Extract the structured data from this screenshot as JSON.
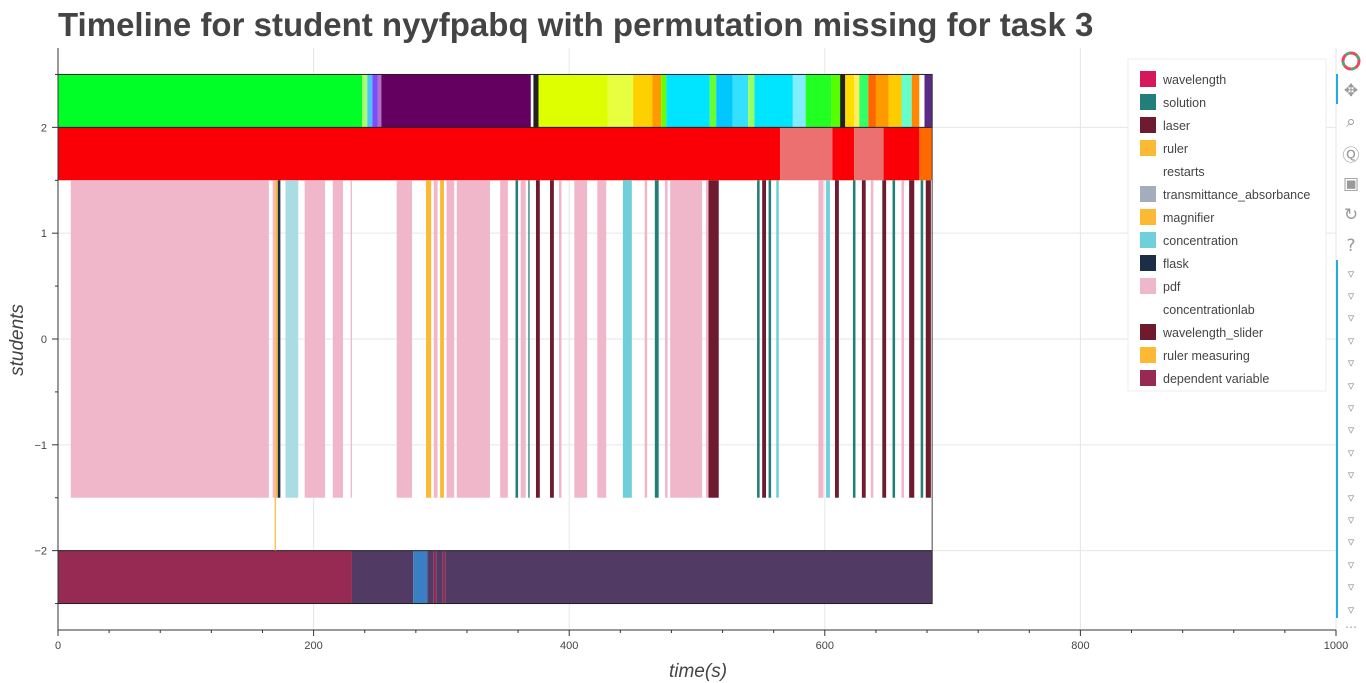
{
  "chart_data": {
    "type": "timeline",
    "title": "Timeline for student nyyfpabq with permutation missing for task 3",
    "xlabel": "time(s)",
    "ylabel": "students",
    "xlim": [
      0,
      1000
    ],
    "ylim": [
      -2.75,
      2.75
    ],
    "x_ticks": [
      0,
      200,
      400,
      600,
      800,
      1000
    ],
    "y_ticks": [
      -2,
      -1,
      0,
      1,
      2
    ],
    "y_tick_labels": [
      "−2",
      "−1",
      "0",
      "1",
      "2"
    ],
    "grid": true,
    "legend_position": "top-right",
    "end_time": 684,
    "legend": [
      {
        "label": "wavelength",
        "color": "#d6185a"
      },
      {
        "label": "solution",
        "color": "#237d79"
      },
      {
        "label": "laser",
        "color": "#6e1a2f"
      },
      {
        "label": "ruler",
        "color": "#fbb934"
      },
      {
        "label": "restarts",
        "color": "#ffffff"
      },
      {
        "label": "transmittance_absorbance",
        "color": "#a3adbc"
      },
      {
        "label": "magnifier",
        "color": "#fbb934"
      },
      {
        "label": "concentration",
        "color": "#6fd0dc"
      },
      {
        "label": "flask",
        "color": "#1b2e45"
      },
      {
        "label": "pdf",
        "color": "#f0b7ca"
      },
      {
        "label": "concentrationlab",
        "color": "#ffffff"
      },
      {
        "label": "wavelength_slider",
        "color": "#6e1a2f"
      },
      {
        "label": "ruler measuring",
        "color": "#fbb934"
      },
      {
        "label": "dependent variable",
        "color": "#962a52"
      }
    ],
    "rows": [
      {
        "y": [
          2,
          2.5
        ],
        "segments": [
          {
            "start": 0,
            "end": 238,
            "color": "#00ff26"
          },
          {
            "start": 238,
            "end": 242,
            "color": "#a8ff6c"
          },
          {
            "start": 242,
            "end": 246,
            "color": "#4fc3f7"
          },
          {
            "start": 246,
            "end": 250,
            "color": "#7c4dff"
          },
          {
            "start": 250,
            "end": 253,
            "color": "#b26fc9"
          },
          {
            "start": 253,
            "end": 370,
            "color": "#630060"
          },
          {
            "start": 370,
            "end": 372,
            "color": "#ffffff"
          },
          {
            "start": 372,
            "end": 376,
            "color": "#222222"
          },
          {
            "start": 376,
            "end": 430,
            "color": "#ddff00"
          },
          {
            "start": 430,
            "end": 450,
            "color": "#e8ff40"
          },
          {
            "start": 450,
            "end": 465,
            "color": "#ffd000"
          },
          {
            "start": 465,
            "end": 472,
            "color": "#ff9900"
          },
          {
            "start": 472,
            "end": 476,
            "color": "#66ff00"
          },
          {
            "start": 476,
            "end": 510,
            "color": "#00e5ff"
          },
          {
            "start": 510,
            "end": 515,
            "color": "#66ff33"
          },
          {
            "start": 515,
            "end": 528,
            "color": "#00c8ff"
          },
          {
            "start": 528,
            "end": 540,
            "color": "#33e0ff"
          },
          {
            "start": 540,
            "end": 545,
            "color": "#99ff66"
          },
          {
            "start": 545,
            "end": 575,
            "color": "#00e5ff"
          },
          {
            "start": 575,
            "end": 585,
            "color": "#80eeff"
          },
          {
            "start": 585,
            "end": 605,
            "color": "#22ff22"
          },
          {
            "start": 605,
            "end": 612,
            "color": "#55ff00"
          },
          {
            "start": 612,
            "end": 616,
            "color": "#222222"
          },
          {
            "start": 616,
            "end": 623,
            "color": "#ffdd00"
          },
          {
            "start": 623,
            "end": 627,
            "color": "#ffee55"
          },
          {
            "start": 627,
            "end": 634,
            "color": "#33ff66"
          },
          {
            "start": 634,
            "end": 640,
            "color": "#ff6600"
          },
          {
            "start": 640,
            "end": 650,
            "color": "#ff9900"
          },
          {
            "start": 650,
            "end": 660,
            "color": "#ffcc00"
          },
          {
            "start": 660,
            "end": 668,
            "color": "#66ffcc"
          },
          {
            "start": 668,
            "end": 674,
            "color": "#ff8800"
          },
          {
            "start": 674,
            "end": 678,
            "color": "#ffffff"
          },
          {
            "start": 678,
            "end": 684,
            "color": "#5b2a86"
          }
        ]
      },
      {
        "y": [
          1.5,
          2
        ],
        "segments": [
          {
            "start": 0,
            "end": 565,
            "color": "#fa0006"
          },
          {
            "start": 565,
            "end": 606,
            "color": "#ed7070"
          },
          {
            "start": 606,
            "end": 623,
            "color": "#fa0006"
          },
          {
            "start": 623,
            "end": 646,
            "color": "#ed7070"
          },
          {
            "start": 646,
            "end": 674,
            "color": "#fa0006"
          },
          {
            "start": 674,
            "end": 684,
            "color": "#ff6a00"
          }
        ]
      },
      {
        "y": [
          -1.5,
          1.5
        ],
        "segments": [
          {
            "start": 10,
            "end": 165,
            "color": "#f0b7ca"
          },
          {
            "start": 168,
            "end": 170,
            "color": "#f0b7ca"
          },
          {
            "start": 170,
            "end": 172,
            "color": "#fbb934"
          },
          {
            "start": 172,
            "end": 174,
            "color": "#1b2e45"
          },
          {
            "start": 178,
            "end": 188,
            "color": "#a9dce3"
          },
          {
            "start": 193,
            "end": 209,
            "color": "#f0b7ca"
          },
          {
            "start": 215,
            "end": 223,
            "color": "#f0b7ca"
          },
          {
            "start": 229,
            "end": 230,
            "color": "#f0b7ca"
          },
          {
            "start": 265,
            "end": 277,
            "color": "#f0b7ca"
          },
          {
            "start": 288,
            "end": 292,
            "color": "#fbb934"
          },
          {
            "start": 294,
            "end": 297,
            "color": "#f0b7ca"
          },
          {
            "start": 299,
            "end": 302,
            "color": "#fbb934"
          },
          {
            "start": 304,
            "end": 310,
            "color": "#f0b7ca"
          },
          {
            "start": 312,
            "end": 338,
            "color": "#f0b7ca"
          },
          {
            "start": 346,
            "end": 352,
            "color": "#f0b7ca"
          },
          {
            "start": 358,
            "end": 360,
            "color": "#237d79"
          },
          {
            "start": 362,
            "end": 366,
            "color": "#f0b7ca"
          },
          {
            "start": 368,
            "end": 369,
            "color": "#237d79"
          },
          {
            "start": 374,
            "end": 377,
            "color": "#6e1a2f"
          },
          {
            "start": 385,
            "end": 388,
            "color": "#6e1a2f"
          },
          {
            "start": 392,
            "end": 394,
            "color": "#f0b7ca"
          },
          {
            "start": 404,
            "end": 414,
            "color": "#f0b7ca"
          },
          {
            "start": 422,
            "end": 429,
            "color": "#f0b7ca"
          },
          {
            "start": 442,
            "end": 449,
            "color": "#6fd0dc"
          },
          {
            "start": 459,
            "end": 461,
            "color": "#f0b7ca"
          },
          {
            "start": 467,
            "end": 470,
            "color": "#237d79"
          },
          {
            "start": 475,
            "end": 477,
            "color": "#f0b7ca"
          },
          {
            "start": 479,
            "end": 504,
            "color": "#f0b7ca"
          },
          {
            "start": 507,
            "end": 509,
            "color": "#f0b7ca"
          },
          {
            "start": 509,
            "end": 517,
            "color": "#6e1a2f"
          },
          {
            "start": 547,
            "end": 549,
            "color": "#237d79"
          },
          {
            "start": 551,
            "end": 554,
            "color": "#6e1a2f"
          },
          {
            "start": 556,
            "end": 558,
            "color": "#237d79"
          },
          {
            "start": 562,
            "end": 564,
            "color": "#6fd0dc"
          },
          {
            "start": 595,
            "end": 599,
            "color": "#f0b7ca"
          },
          {
            "start": 601,
            "end": 604,
            "color": "#6fd0dc"
          },
          {
            "start": 608,
            "end": 611,
            "color": "#6e1a2f"
          },
          {
            "start": 622,
            "end": 624,
            "color": "#237d79"
          },
          {
            "start": 629,
            "end": 632,
            "color": "#6e1a2f"
          },
          {
            "start": 636,
            "end": 638,
            "color": "#f0b7ca"
          },
          {
            "start": 645,
            "end": 648,
            "color": "#6e1a2f"
          },
          {
            "start": 653,
            "end": 655,
            "color": "#237d79"
          },
          {
            "start": 660,
            "end": 662,
            "color": "#f0b7ca"
          },
          {
            "start": 666,
            "end": 670,
            "color": "#6e1a2f"
          },
          {
            "start": 675,
            "end": 677,
            "color": "#237d79"
          },
          {
            "start": 679,
            "end": 683,
            "color": "#6e1a2f"
          }
        ]
      },
      {
        "y": [
          -2.5,
          -2
        ],
        "segments": [
          {
            "start": 0,
            "end": 230,
            "color": "#962a52"
          },
          {
            "start": 230,
            "end": 278,
            "color": "#513a63"
          },
          {
            "start": 278,
            "end": 289,
            "color": "#3a7fc4"
          },
          {
            "start": 289,
            "end": 294,
            "color": "#513a63"
          },
          {
            "start": 294,
            "end": 296,
            "color": "#962a52"
          },
          {
            "start": 296,
            "end": 301,
            "color": "#513a63"
          },
          {
            "start": 301,
            "end": 303,
            "color": "#962a52"
          },
          {
            "start": 303,
            "end": 684,
            "color": "#513a63"
          }
        ]
      }
    ],
    "markers": [
      {
        "x": 170,
        "y0": -2.0,
        "y1": -1.5,
        "color": "#fbb934"
      }
    ]
  },
  "toolbar": {
    "tools": [
      {
        "name": "pan-tool",
        "icon": "move-icon",
        "glyph": "✥"
      },
      {
        "name": "box-zoom-tool",
        "icon": "box-zoom-icon",
        "glyph": "⌕"
      },
      {
        "name": "wheel-zoom-tool",
        "icon": "wheel-zoom-icon",
        "glyph": "Ⓠ"
      },
      {
        "name": "save-tool",
        "icon": "save-icon",
        "glyph": "▣"
      },
      {
        "name": "reset-tool",
        "icon": "reset-icon",
        "glyph": "↻"
      },
      {
        "name": "help-tool",
        "icon": "help-icon",
        "glyph": "?"
      }
    ],
    "hover_tool_count": 16,
    "hover_glyph": "▿",
    "more_glyph": "⋯"
  }
}
